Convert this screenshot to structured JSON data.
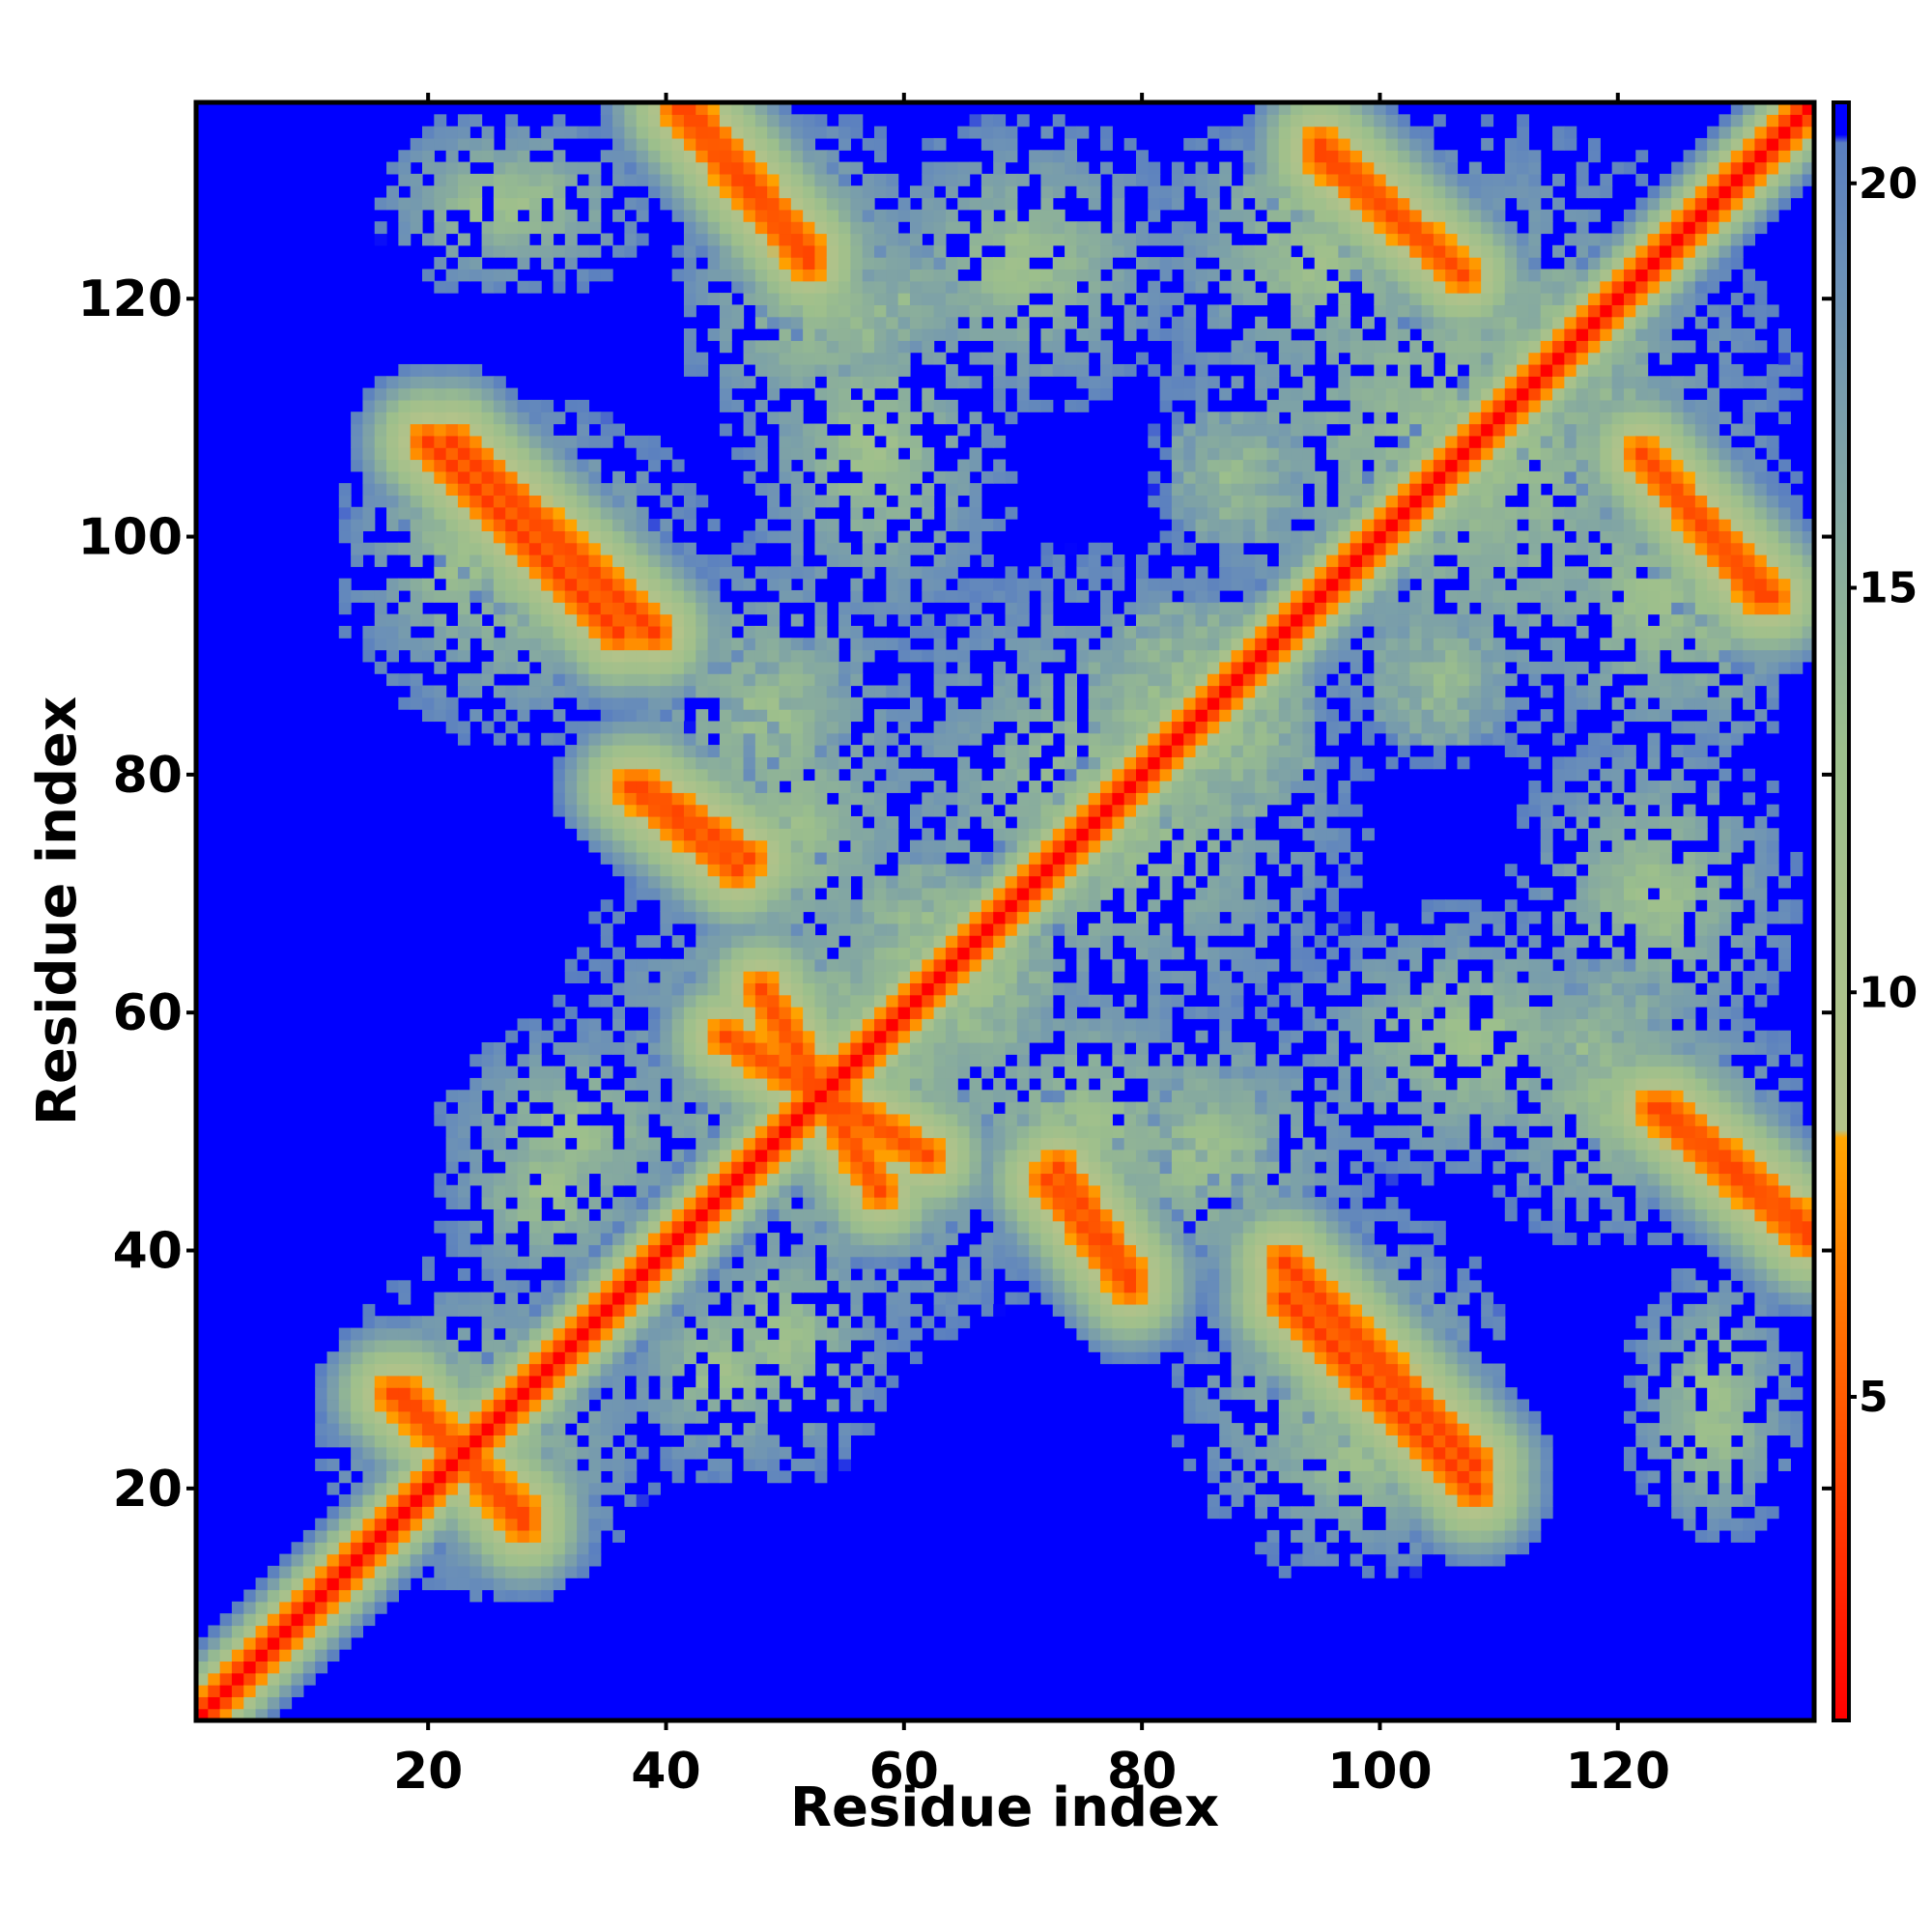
{
  "chart_data": {
    "type": "heatmap",
    "title": "",
    "xlabel": "Residue index",
    "ylabel": "Residue index",
    "n_residues": 136,
    "xlim": [
      1,
      136
    ],
    "ylim": [
      1,
      136
    ],
    "x_ticks": [
      20,
      40,
      60,
      80,
      100,
      120
    ],
    "y_ticks": [
      20,
      40,
      60,
      80,
      100,
      120
    ],
    "colorbar": {
      "ticks": [
        5,
        10,
        15,
        20
      ],
      "range": [
        1,
        21
      ],
      "stops": [
        {
          "value": 1,
          "color": "#ff0000"
        },
        {
          "value": 8.2,
          "color": "#ffa500"
        },
        {
          "value": 8.3,
          "color": "#b4c38a"
        },
        {
          "value": 13,
          "color": "#9cbf8c"
        },
        {
          "value": 19,
          "color": "#6a8fb8"
        },
        {
          "value": 20.5,
          "color": "#5a7fc0"
        },
        {
          "value": 20.6,
          "color": "#0000ff"
        }
      ]
    },
    "background_color": "#0000ff",
    "diagonal_color": "#ff0000",
    "contact_bands": [
      {
        "start": [
          18,
          28
        ],
        "end": [
          28,
          17
        ],
        "min_distance": 4,
        "width": 3.0
      },
      {
        "start": [
          48,
          62
        ],
        "end": [
          58,
          45
        ],
        "min_distance": 4,
        "width": 3.5
      },
      {
        "start": [
          73,
          47
        ],
        "end": [
          79,
          38
        ],
        "min_distance": 4,
        "width": 3.5
      },
      {
        "start": [
          92,
          39
        ],
        "end": [
          108,
          22
        ],
        "min_distance": 3.5,
        "width": 4.0
      },
      {
        "start": [
          123,
          52
        ],
        "end": [
          136,
          41
        ],
        "min_distance": 4,
        "width": 3.5
      },
      {
        "start": [
          37,
          79
        ],
        "end": [
          46,
          72
        ],
        "min_distance": 4,
        "width": 3.5
      },
      {
        "start": [
          20,
          108
        ],
        "end": [
          36,
          92
        ],
        "min_distance": 3.5,
        "width": 4.0
      },
      {
        "start": [
          42,
          136
        ],
        "end": [
          52,
          124
        ],
        "min_distance": 4,
        "width": 3.5
      },
      {
        "start": [
          95,
          133
        ],
        "end": [
          107,
          122
        ],
        "min_distance": 4,
        "width": 3.5
      },
      {
        "start": [
          122,
          107
        ],
        "end": [
          132,
          95
        ],
        "min_distance": 4,
        "width": 3.5
      }
    ],
    "contact_blobs": [
      {
        "center": [
          85,
          85
        ],
        "radius": 10,
        "max_distance": 11
      },
      {
        "center": [
          63,
          65
        ],
        "radius": 8,
        "max_distance": 11
      },
      {
        "center": [
          115,
          115
        ],
        "radius": 8,
        "max_distance": 11
      },
      {
        "center": [
          22,
          22
        ],
        "radius": 6,
        "max_distance": 11
      },
      {
        "center": [
          55,
          52
        ],
        "radius": 6,
        "max_distance": 11
      },
      {
        "center": [
          88,
          105
        ],
        "radius": 6,
        "max_distance": 12
      },
      {
        "center": [
          105,
          88
        ],
        "radius": 6,
        "max_distance": 12
      },
      {
        "center": [
          118,
          57
        ],
        "radius": 5,
        "max_distance": 12
      },
      {
        "center": [
          86,
          50
        ],
        "radius": 6,
        "max_distance": 13
      },
      {
        "center": [
          60,
          120
        ],
        "radius": 5,
        "max_distance": 13
      }
    ],
    "near_contact_regions": [
      {
        "x": [
          10,
          40
        ],
        "y": [
          10,
          40
        ]
      },
      {
        "x": [
          30,
          80
        ],
        "y": [
          30,
          80
        ]
      },
      {
        "x": [
          55,
          100
        ],
        "y": [
          55,
          100
        ]
      },
      {
        "x": [
          80,
          136
        ],
        "y": [
          80,
          136
        ]
      },
      {
        "x": [
          12,
          34
        ],
        "y": [
          85,
          112
        ]
      },
      {
        "x": [
          35,
          62
        ],
        "y": [
          70,
          100
        ]
      },
      {
        "x": [
          15,
          35
        ],
        "y": [
          120,
          136
        ]
      },
      {
        "x": [
          40,
          62
        ],
        "y": [
          115,
          136
        ]
      },
      {
        "x": [
          55,
          85
        ],
        "y": [
          110,
          136
        ]
      },
      {
        "x": [
          80,
          110
        ],
        "y": [
          120,
          136
        ]
      },
      {
        "x": [
          60,
          90
        ],
        "y": [
          35,
          65
        ]
      },
      {
        "x": [
          82,
          112
        ],
        "y": [
          12,
          45
        ]
      },
      {
        "x": [
          105,
          136
        ],
        "y": [
          40,
          65
        ]
      },
      {
        "x": [
          120,
          136
        ],
        "y": [
          15,
          40
        ]
      },
      {
        "x": [
          20,
          45
        ],
        "y": [
          40,
          60
        ]
      },
      {
        "x": [
          35,
          55
        ],
        "y": [
          20,
          40
        ]
      },
      {
        "x": [
          110,
          136
        ],
        "y": [
          80,
          110
        ]
      },
      {
        "x": [
          90,
          125
        ],
        "y": [
          45,
          70
        ]
      }
    ]
  }
}
